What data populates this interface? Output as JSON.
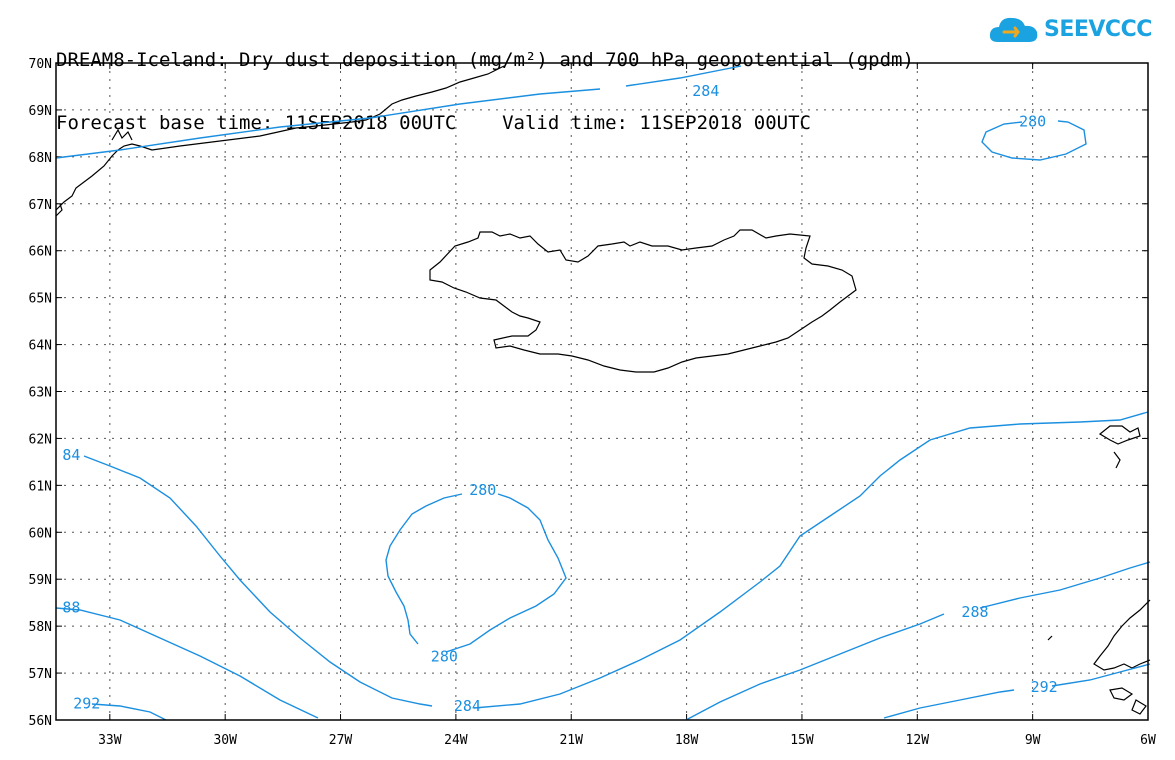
{
  "header": {
    "title_line1": "DREAM8-Iceland: Dry dust deposition (mg/m²) and 700 hPa geopotential (gpdm)",
    "title_line2": "Forecast base time: 11SEP2018 00UTC    Valid time: 11SEP2018 00UTC"
  },
  "logo": {
    "text": "SEEVCCC",
    "icon": "cloud-icon",
    "color": "#1aa3e0"
  },
  "map": {
    "lat_labels": [
      "70N",
      "69N",
      "68N",
      "67N",
      "66N",
      "65N",
      "64N",
      "63N",
      "62N",
      "61N",
      "60N",
      "59N",
      "58N",
      "57N",
      "56N"
    ],
    "lon_labels": [
      "33W",
      "30W",
      "27W",
      "24W",
      "21W",
      "18W",
      "15W",
      "12W",
      "9W",
      "6W"
    ],
    "contour_color": "#1b8fe0",
    "coast_color": "#000000",
    "contour_labels": [
      {
        "text": "284",
        "lon": -17.5,
        "lat": 69.4
      },
      {
        "text": "280",
        "lon": -9.0,
        "lat": 68.75
      },
      {
        "text": "84",
        "lon": -34.0,
        "lat": 61.65
      },
      {
        "text": "280",
        "lon": -23.3,
        "lat": 60.9
      },
      {
        "text": "288",
        "lon": -10.5,
        "lat": 58.3
      },
      {
        "text": "88",
        "lon": -34.0,
        "lat": 58.4
      },
      {
        "text": "280",
        "lon": -24.3,
        "lat": 57.35
      },
      {
        "text": "284",
        "lon": -23.7,
        "lat": 56.3
      },
      {
        "text": "292",
        "lon": -8.7,
        "lat": 56.7
      },
      {
        "text": "292",
        "lon": -33.6,
        "lat": 56.35
      }
    ]
  }
}
